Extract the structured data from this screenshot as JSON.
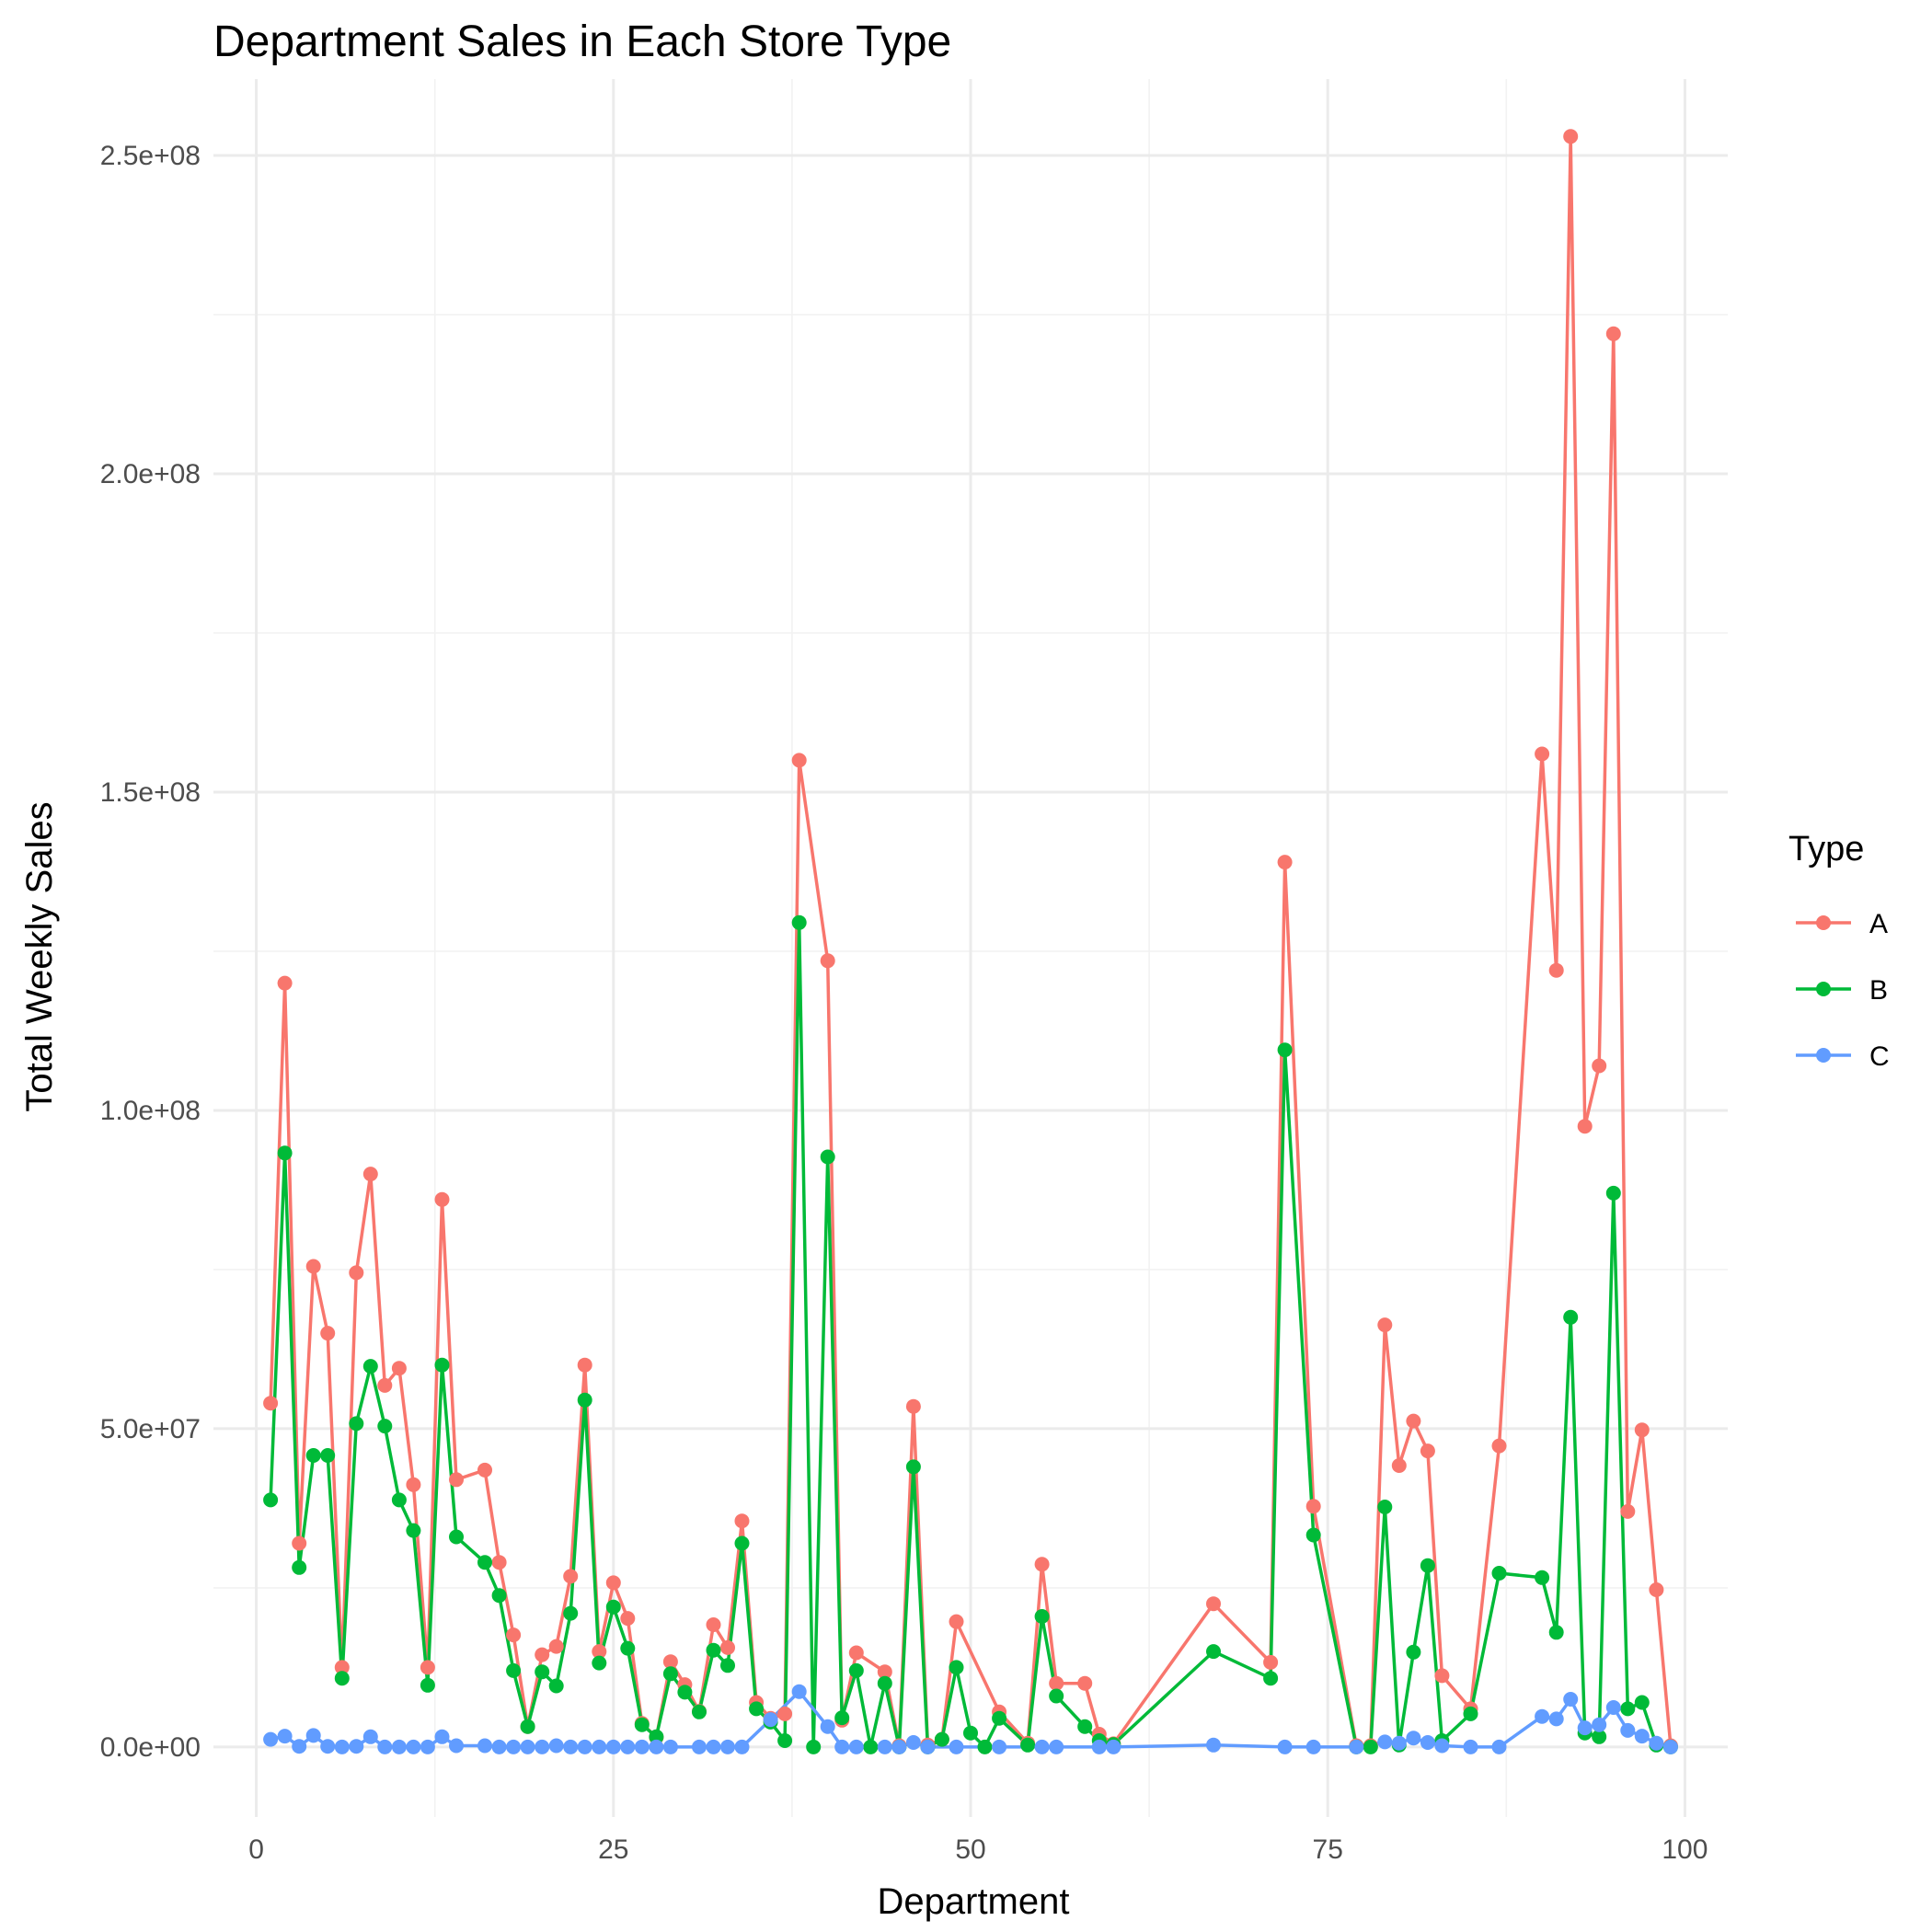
{
  "chart_data": {
    "type": "line",
    "title": "Department Sales in Each Store Type",
    "xlabel": "Department",
    "ylabel": "Total Weekly Sales",
    "xlim": [
      -3,
      103
    ],
    "ylim": [
      -11000000,
      262000000
    ],
    "x_ticks": [
      0,
      25,
      50,
      75,
      100
    ],
    "x_tick_labels": [
      "0",
      "25",
      "50",
      "75",
      "100"
    ],
    "y_ticks": [
      0,
      50000000,
      100000000,
      150000000,
      200000000,
      250000000
    ],
    "y_tick_labels": [
      "0.0e+00",
      "5.0e+07",
      "1.0e+08",
      "1.5e+08",
      "2.0e+08",
      "2.5e+08"
    ],
    "grid": true,
    "legend": {
      "title": "Type",
      "position": "right"
    },
    "series": [
      {
        "name": "A",
        "color": "#F8766D",
        "x": [
          1,
          2,
          3,
          4,
          5,
          6,
          7,
          8,
          9,
          10,
          11,
          12,
          13,
          14,
          16,
          17,
          18,
          19,
          20,
          21,
          22,
          23,
          24,
          25,
          26,
          27,
          28,
          29,
          30,
          31,
          32,
          33,
          34,
          35,
          36,
          37,
          38,
          40,
          41,
          42,
          44,
          45,
          46,
          47,
          48,
          49,
          52,
          54,
          55,
          56,
          58,
          59,
          60,
          67,
          71,
          72,
          74,
          77,
          78,
          79,
          80,
          81,
          82,
          83,
          85,
          87,
          90,
          91,
          92,
          93,
          94,
          95,
          96,
          97,
          98,
          99
        ],
        "y": [
          54000000,
          120000000,
          32000000,
          75500000,
          65000000,
          12500000,
          74500000,
          90000000,
          56800000,
          59500000,
          41200000,
          12500000,
          86000000,
          42000000,
          43500000,
          29000000,
          17600000,
          3200000,
          14500000,
          15800000,
          26800000,
          60000000,
          15000000,
          25800000,
          20200000,
          3700000,
          1500000,
          13400000,
          9800000,
          5600000,
          19200000,
          15600000,
          35500000,
          7000000,
          4500000,
          5200000,
          155000000,
          123500000,
          4200000,
          14800000,
          11800000,
          200000,
          53500000,
          300000,
          1200000,
          19700000,
          5500000,
          600000,
          28700000,
          10000000,
          10000000,
          2000000,
          500000,
          22500000,
          13300000,
          139000000,
          37800000,
          200000,
          200000,
          66300000,
          44200000,
          51200000,
          46500000,
          11200000,
          6000000,
          47300000,
          156000000,
          122000000,
          253000000,
          97500000,
          107000000,
          222000000,
          37000000,
          49800000,
          24700000,
          200000
        ]
      },
      {
        "name": "B",
        "color": "#00BA38",
        "x": [
          1,
          2,
          3,
          4,
          5,
          6,
          7,
          8,
          9,
          10,
          11,
          12,
          13,
          14,
          16,
          17,
          18,
          19,
          20,
          21,
          22,
          23,
          24,
          25,
          26,
          27,
          28,
          29,
          30,
          31,
          32,
          33,
          34,
          35,
          36,
          37,
          38,
          39,
          40,
          41,
          42,
          43,
          44,
          45,
          46,
          47,
          48,
          49,
          50,
          51,
          52,
          54,
          55,
          56,
          58,
          59,
          60,
          67,
          71,
          72,
          74,
          77,
          78,
          79,
          80,
          81,
          82,
          83,
          85,
          87,
          90,
          91,
          92,
          93,
          94,
          95,
          96,
          97,
          98,
          99
        ],
        "y": [
          38800000,
          93300000,
          28200000,
          45800000,
          45800000,
          10800000,
          50800000,
          59800000,
          50400000,
          38800000,
          34000000,
          9700000,
          60000000,
          33000000,
          29000000,
          23800000,
          12000000,
          3200000,
          11800000,
          9600000,
          21000000,
          54500000,
          13200000,
          22000000,
          15500000,
          3500000,
          1600000,
          11500000,
          8600000,
          5500000,
          15200000,
          12800000,
          32000000,
          6000000,
          3900000,
          1000000,
          129500000,
          0,
          92700000,
          4600000,
          12000000,
          0,
          10000000,
          0,
          44000000,
          0,
          1200000,
          12500000,
          2200000,
          0,
          4500000,
          300000,
          20500000,
          8000000,
          3200000,
          1000000,
          400000,
          15000000,
          10800000,
          109500000,
          33300000,
          0,
          0,
          37700000,
          300000,
          14900000,
          28500000,
          1000000,
          5200000,
          27300000,
          26600000,
          18000000,
          67500000,
          2200000,
          1600000,
          87000000,
          6000000,
          7000000,
          300000,
          0
        ]
      },
      {
        "name": "C",
        "color": "#619CFF",
        "x": [
          1,
          2,
          3,
          4,
          5,
          6,
          7,
          8,
          9,
          10,
          11,
          12,
          13,
          14,
          16,
          17,
          18,
          19,
          20,
          21,
          22,
          23,
          24,
          25,
          26,
          27,
          28,
          29,
          31,
          32,
          33,
          34,
          36,
          38,
          40,
          41,
          42,
          44,
          45,
          46,
          47,
          49,
          52,
          55,
          56,
          59,
          60,
          67,
          72,
          74,
          77,
          79,
          80,
          81,
          82,
          83,
          85,
          87,
          90,
          91,
          92,
          93,
          94,
          95,
          96,
          97,
          98,
          99
        ],
        "y": [
          1200000,
          1700000,
          100000,
          1800000,
          100000,
          0,
          100000,
          1600000,
          0,
          0,
          0,
          0,
          1600000,
          200000,
          200000,
          0,
          0,
          0,
          0,
          200000,
          0,
          0,
          0,
          0,
          0,
          0,
          0,
          0,
          0,
          0,
          0,
          0,
          4300000,
          8700000,
          3200000,
          0,
          0,
          0,
          0,
          700000,
          0,
          0,
          0,
          0,
          0,
          0,
          0,
          300000,
          0,
          0,
          0,
          800000,
          600000,
          1400000,
          700000,
          200000,
          0,
          0,
          4800000,
          4400000,
          7500000,
          3000000,
          3500000,
          6200000,
          2600000,
          1700000,
          600000,
          0
        ]
      }
    ]
  }
}
